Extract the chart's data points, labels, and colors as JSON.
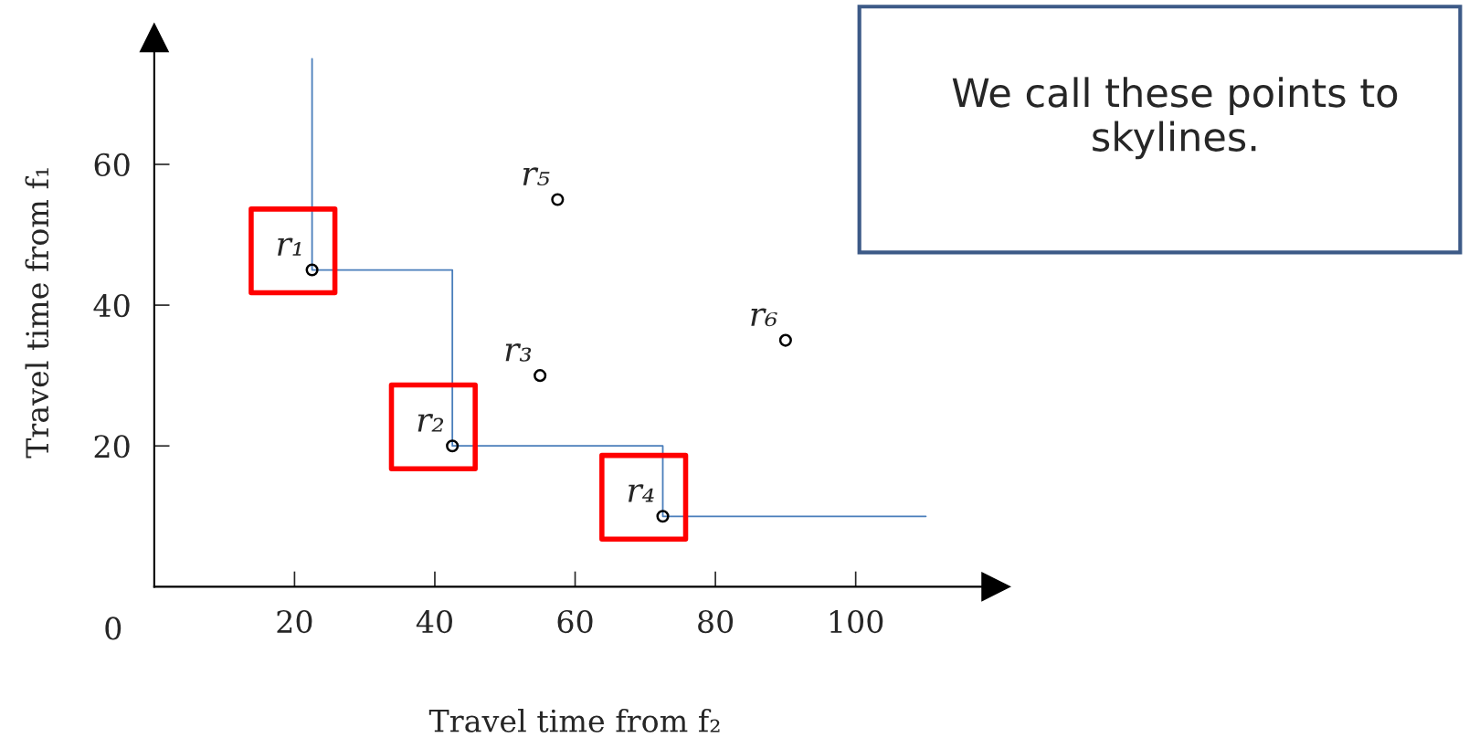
{
  "chart_data": {
    "type": "scatter",
    "xlabel": "Travel time from f₂",
    "ylabel": "Travel time from f₁",
    "xlim": [
      0,
      120
    ],
    "ylim": [
      0,
      78
    ],
    "xticks": [
      20,
      40,
      60,
      80,
      100
    ],
    "yticks": [
      20,
      40,
      60
    ],
    "grid": false,
    "series": [
      {
        "type": "line",
        "color": "#4a7ebb",
        "marker": "none",
        "x": [
          22.5,
          22.5,
          42.5,
          42.5,
          72.5,
          72.5,
          110
        ],
        "values": [
          75,
          45,
          45,
          20,
          20,
          10,
          10
        ]
      },
      {
        "color": "#000000",
        "marker": "circle",
        "x": [
          22.5,
          42.5,
          55,
          72.5,
          57.5,
          90
        ],
        "values": [
          45,
          20,
          30,
          10,
          55,
          35
        ]
      }
    ],
    "annotations": [
      {
        "text": "r₁",
        "x": 22.5,
        "y": 45
      },
      {
        "text": "r₂",
        "x": 42.5,
        "y": 20
      },
      {
        "text": "r₃",
        "x": 55,
        "y": 30
      },
      {
        "text": "r₄",
        "x": 72.5,
        "y": 10
      },
      {
        "text": "r₅",
        "x": 57.5,
        "y": 55
      },
      {
        "text": "r₆",
        "x": 90,
        "y": 35
      },
      "0",
      "We call these points to skylines."
    ]
  }
}
